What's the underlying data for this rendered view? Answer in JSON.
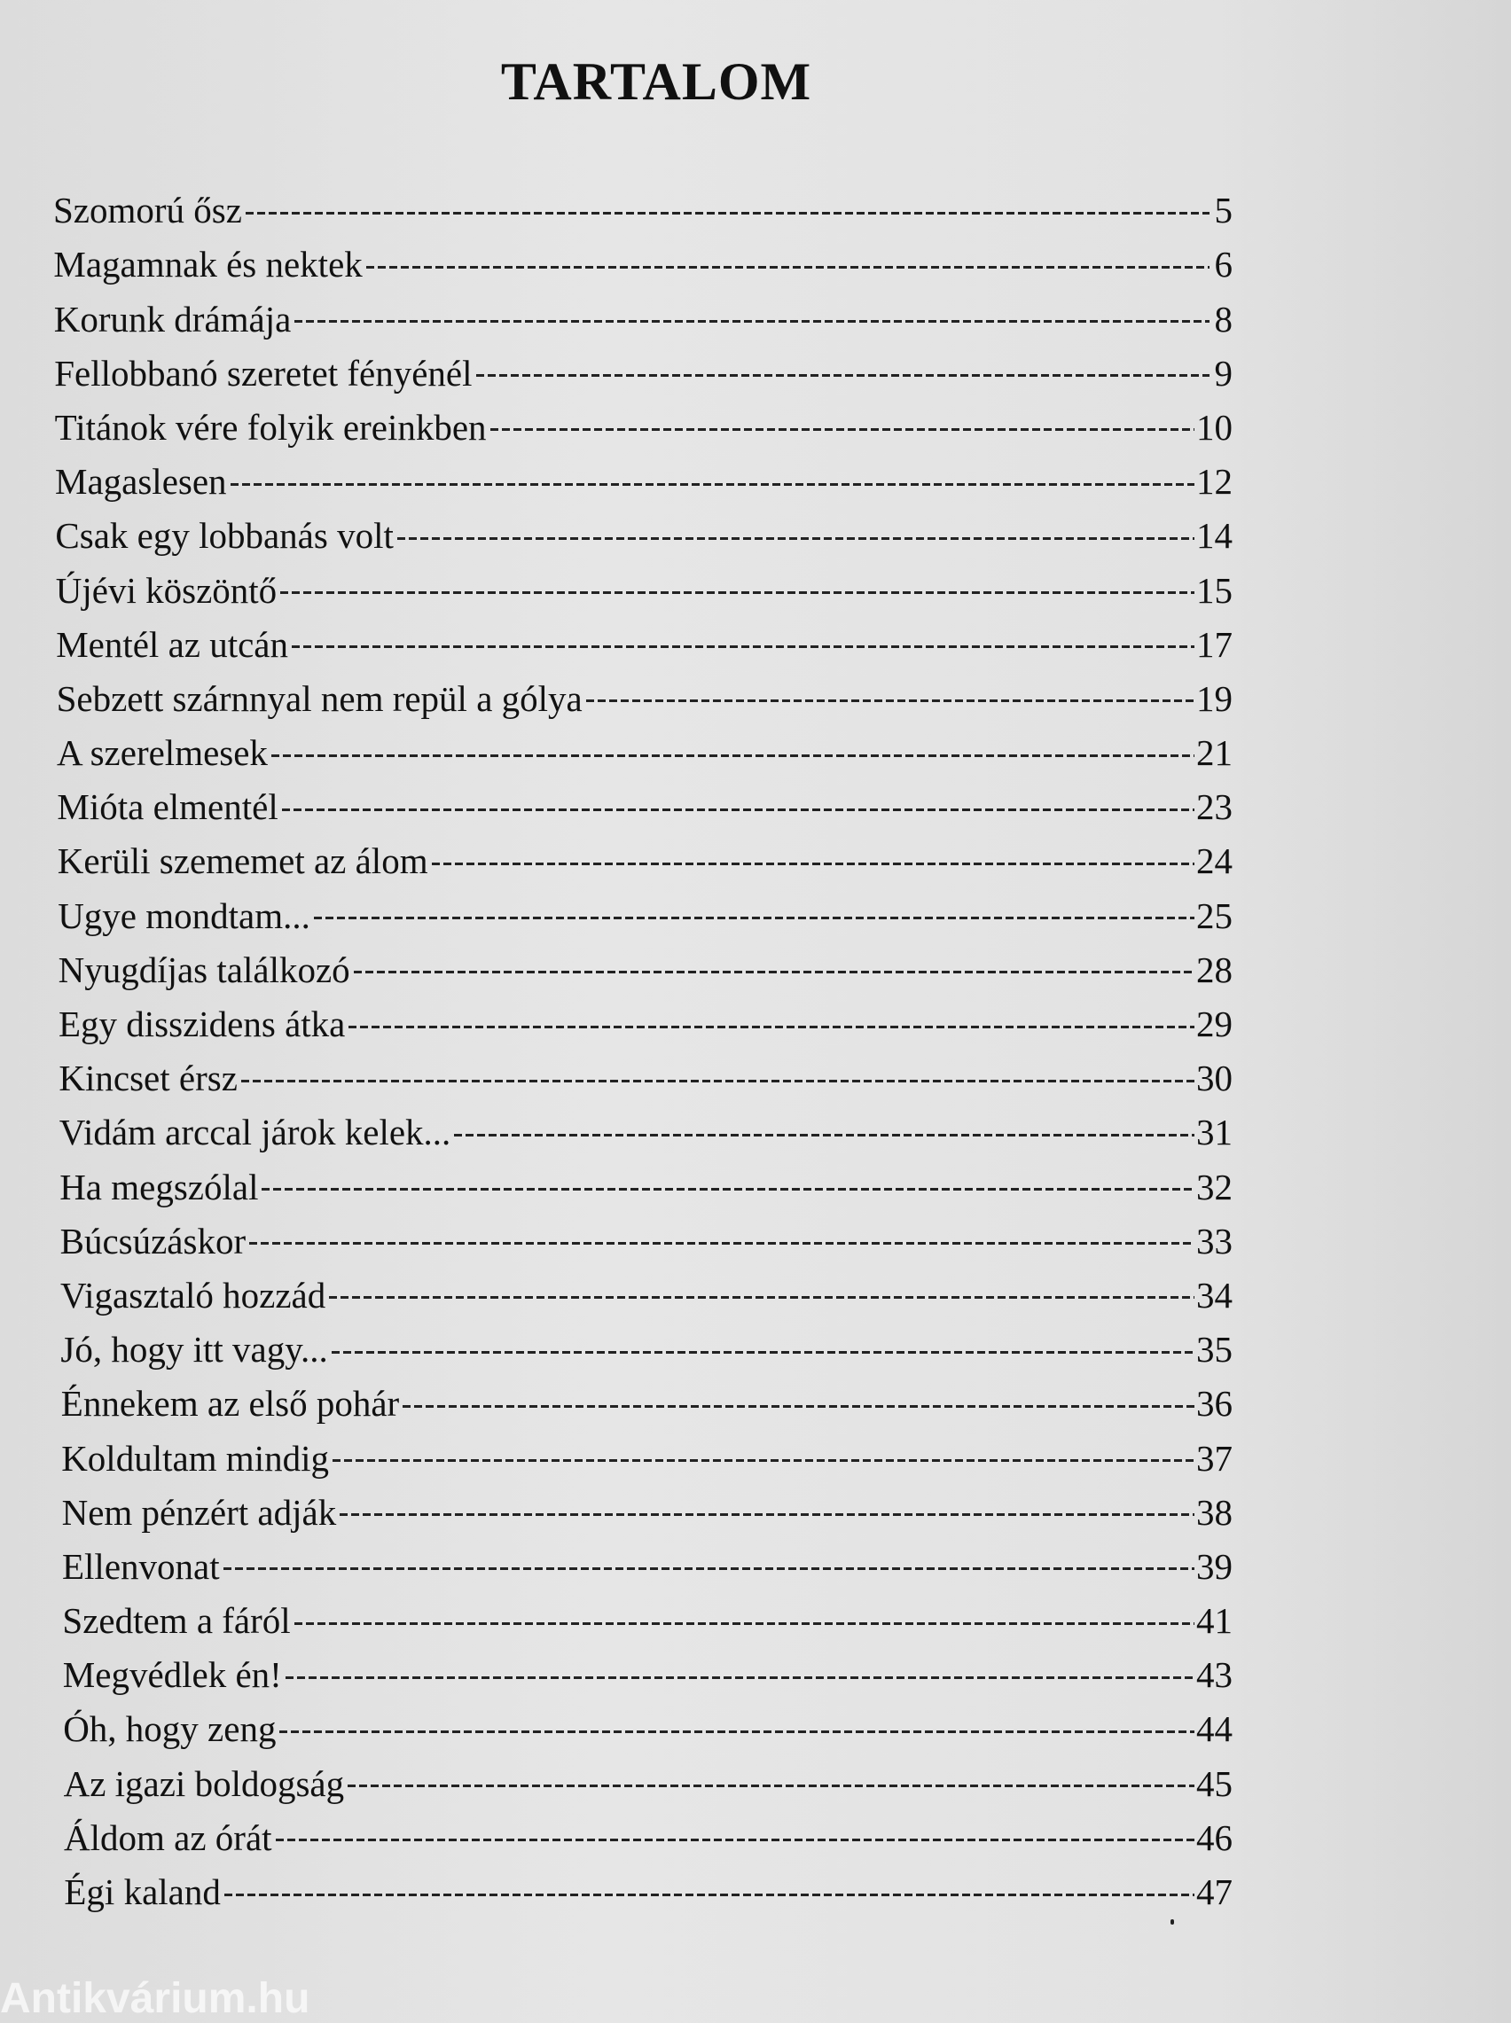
{
  "title": "TARTALOM",
  "entries": [
    {
      "title": "Szomorú ősz",
      "page": "5"
    },
    {
      "title": "Magamnak és nektek",
      "page": "6"
    },
    {
      "title": "Korunk drámája",
      "page": "8"
    },
    {
      "title": "Fellobbanó szeretet fényénél",
      "page": "9"
    },
    {
      "title": "Titánok vére folyik ereinkben",
      "page": "10"
    },
    {
      "title": "Magaslesen",
      "page": "12"
    },
    {
      "title": "Csak egy lobbanás volt",
      "page": "14"
    },
    {
      "title": "Újévi köszöntő",
      "page": "15"
    },
    {
      "title": "Mentél az utcán",
      "page": "17"
    },
    {
      "title": "Sebzett szárnnyal nem repül a gólya",
      "page": "19"
    },
    {
      "title": "A szerelmesek",
      "page": "21"
    },
    {
      "title": "Mióta elmentél",
      "page": "23"
    },
    {
      "title": "Kerüli szememet az álom",
      "page": "24"
    },
    {
      "title": "Ugye mondtam...",
      "page": "25"
    },
    {
      "title": "Nyugdíjas találkozó",
      "page": "28"
    },
    {
      "title": "Egy disszidens átka",
      "page": "29"
    },
    {
      "title": "Kincset érsz",
      "page": "30"
    },
    {
      "title": "Vidám arccal járok kelek...",
      "page": "31"
    },
    {
      "title": "Ha megszólal",
      "page": "32"
    },
    {
      "title": "Búcsúzáskor",
      "page": "33"
    },
    {
      "title": "Vigasztaló hozzád",
      "page": "34"
    },
    {
      "title": "Jó, hogy itt vagy...",
      "page": "35"
    },
    {
      "title": "Énnekem az első pohár",
      "page": "36"
    },
    {
      "title": "Koldultam mindig",
      "page": "37"
    },
    {
      "title": "Nem pénzért adják",
      "page": "38"
    },
    {
      "title": "Ellenvonat",
      "page": "39"
    },
    {
      "title": "Szedtem a fáról",
      "page": "41"
    },
    {
      "title": "Megvédlek én!",
      "page": "43"
    },
    {
      "title": "Óh, hogy zeng",
      "page": "44"
    },
    {
      "title": "Az igazi boldogság",
      "page": "45"
    },
    {
      "title": "Áldom az órát",
      "page": "46"
    },
    {
      "title": "Égi kaland",
      "page": "47"
    }
  ],
  "watermark": "Antikvárium.hu"
}
